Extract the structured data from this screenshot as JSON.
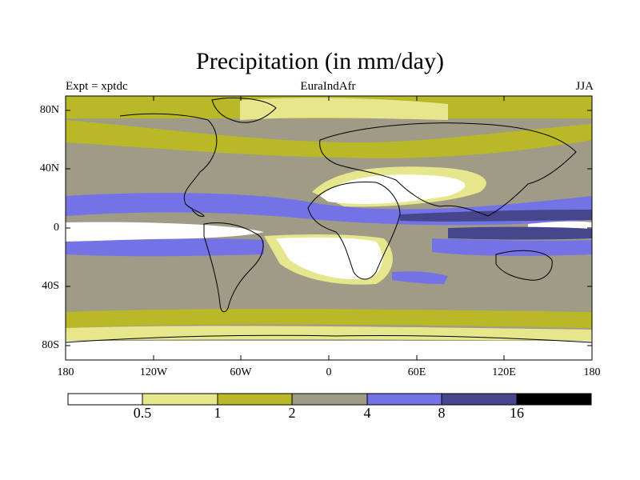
{
  "title": "Precipitation (in mm/day)",
  "subtitle_left": "Expt = xptdc",
  "subtitle_center": "EuraIndAfr",
  "subtitle_right": "JJA",
  "map": {
    "projection": "cylindrical-equidistant",
    "lon_range": [
      -180,
      180
    ],
    "lat_range": [
      -90,
      90
    ],
    "lat_ticks": [
      "80N",
      "40N",
      "0",
      "40S",
      "80S"
    ],
    "lon_ticks": [
      "180",
      "120W",
      "60W",
      "0",
      "60E",
      "120E",
      "180"
    ]
  },
  "colorbar": {
    "levels": [
      "0.5",
      "1",
      "2",
      "4",
      "8",
      "16"
    ],
    "colors": [
      "#ffffff",
      "#e6e68c",
      "#b9b928",
      "#a09b87",
      "#7373e6",
      "#46468c",
      "#000000"
    ]
  },
  "chart_data": {
    "type": "heatmap",
    "title": "Precipitation (in mm/day)",
    "units": "mm/day",
    "season": "JJA",
    "experiment": "xptdc",
    "region_label": "EuraIndAfr",
    "xlim": [
      -180,
      180
    ],
    "ylim": [
      -90,
      90
    ],
    "contour_levels": [
      0.5,
      1,
      2,
      4,
      8,
      16
    ]
  }
}
